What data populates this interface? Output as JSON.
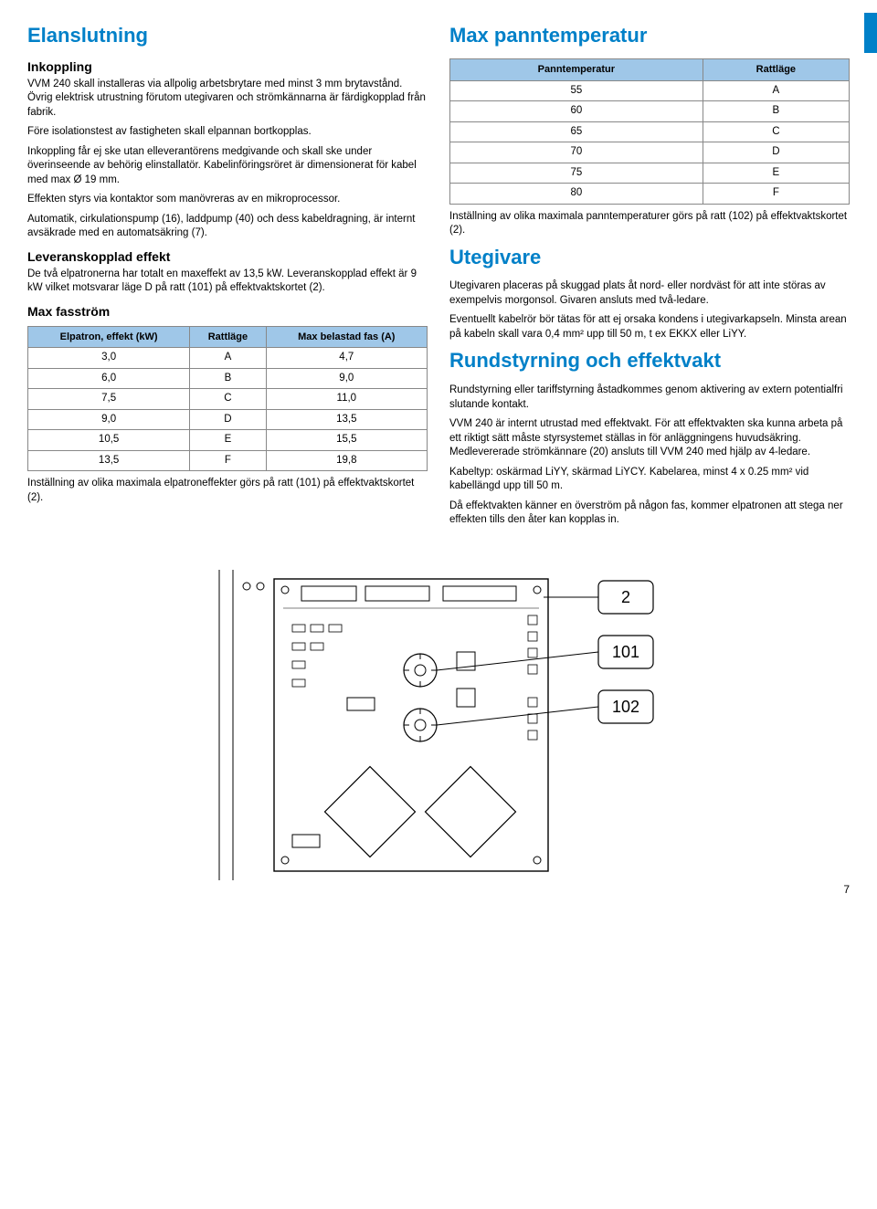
{
  "accent_color": "#0080c8",
  "table_header_bg": "#9fc7e8",
  "page_number": "7",
  "left": {
    "h1": "Elanslutning",
    "h2_inkoppling": "Inkoppling",
    "p1": "VVM 240 skall installeras via allpolig arbetsbrytare med minst 3 mm brytavstånd. Övrig elektrisk utrustning förutom utegivaren och strömkännarna är färdigkopp­lad från fabrik.",
    "p2": "Före isolationstest av fastigheten skall elpannan bort­kopplas.",
    "p3": "Inkoppling får ej ske utan elleverantörens medgivande och skall ske under överinseende av behörig elinstalla­tör. Kabelinföringsröret är dimensionerat för kabel med max Ø 19 mm.",
    "p4": "Effekten styrs via kontaktor som manövreras av en mikroprocessor.",
    "p5": "Automatik, cirkulationspump (16), laddpump (40) och dess kabeldragning, är internt avsäkrade med en auto­matsäkring (7).",
    "h2_lev": "Leveranskopplad effekt",
    "p_lev": "De två elpatronerna har totalt en maxeffekt av 13,5 kW. Leveranskopplad effekt är 9 kW vilket motsvarar läge D på ratt (101) på effektvaktskortet (2).",
    "h2_fas": "Max fasström",
    "table_fas": {
      "headers": [
        "Elpatron, effekt (kW)",
        "Rattläge",
        "Max belastad fas (A)"
      ],
      "rows": [
        [
          "3,0",
          "A",
          "4,7"
        ],
        [
          "6,0",
          "B",
          "9,0"
        ],
        [
          "7,5",
          "C",
          "11,0"
        ],
        [
          "9,0",
          "D",
          "13,5"
        ],
        [
          "10,5",
          "E",
          "15,5"
        ],
        [
          "13,5",
          "F",
          "19,8"
        ]
      ]
    },
    "p_fas_foot": "Inställning av olika maximala elpatroneffekter görs på ratt (101) på effektvaktskortet (2)."
  },
  "right": {
    "h1_pann": "Max panntemperatur",
    "table_pann": {
      "headers": [
        "Panntemperatur",
        "Rattläge"
      ],
      "rows": [
        [
          "55",
          "A"
        ],
        [
          "60",
          "B"
        ],
        [
          "65",
          "C"
        ],
        [
          "70",
          "D"
        ],
        [
          "75",
          "E"
        ],
        [
          "80",
          "F"
        ]
      ]
    },
    "p_pann_foot": "Inställning av olika maximala panntemperaturer görs på ratt (102) på effektvaktskortet (2).",
    "h1_ute": "Utegivare",
    "p_ute1": "Utegivaren placeras på skuggad plats åt nord- eller nord­väst för att inte störas av exempelvis morgonsol. Givaren ansluts med två-ledare.",
    "p_ute2": "Eventuellt kabelrör bör tätas för att ej orsaka kondens i utegivarkapseln. Minsta arean på kabeln skall vara 0,4 mm² upp till 50 m, t ex EKKX eller LiYY.",
    "h1_rund": "Rundstyrning och effektvakt",
    "p_r1": "Rundstyrning eller tariffstyrning åstadkommes genom aktivering av extern potentialfri slutande kontakt.",
    "p_r2": "VVM 240 är internt utrustad med effektvakt. För att effekt­vakten ska kunna arbeta på ett riktigt sätt måste styr­systemet ställas in för anläggningens huvudsäkring. Medlevererade strömkännare (20) ansluts till VVM 240 med hjälp av 4-ledare.",
    "p_r3": "Kabeltyp: oskärmad LiYY, skärmad LiYCY. Kabelarea, minst 4 x 0.25 mm² vid kabellängd upp till 50 m.",
    "p_r4": "Då effektvakten känner en överström på någon fas, kom­mer elpatronen att stega ner effekten tills den åter kan kopplas in."
  },
  "callouts": {
    "a": "2",
    "b": "101",
    "c": "102"
  }
}
